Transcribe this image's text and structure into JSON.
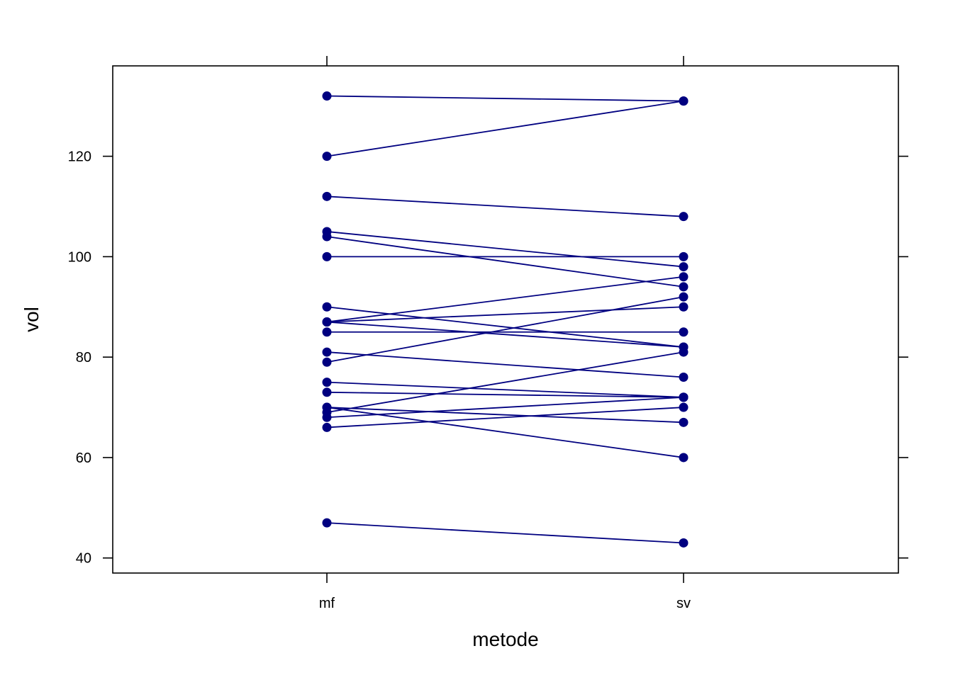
{
  "chart_data": {
    "type": "line",
    "title": "",
    "xlabel": "metode",
    "ylabel": "vol",
    "categories": [
      "mf",
      "sv"
    ],
    "ylim": [
      37,
      138
    ],
    "yticks": [
      40,
      60,
      80,
      100,
      120
    ],
    "grid": false,
    "legend": "none",
    "color": "#000080",
    "pairs": [
      [
        132,
        131
      ],
      [
        120,
        131
      ],
      [
        112,
        108
      ],
      [
        105,
        98
      ],
      [
        104,
        94
      ],
      [
        100,
        100
      ],
      [
        90,
        82
      ],
      [
        87,
        90
      ],
      [
        87,
        96
      ],
      [
        87,
        82
      ],
      [
        85,
        85
      ],
      [
        81,
        76
      ],
      [
        79,
        92
      ],
      [
        75,
        72
      ],
      [
        73,
        72
      ],
      [
        70,
        60
      ],
      [
        69,
        81
      ],
      [
        70,
        67
      ],
      [
        68,
        72
      ],
      [
        66,
        70
      ],
      [
        47,
        43
      ]
    ]
  }
}
